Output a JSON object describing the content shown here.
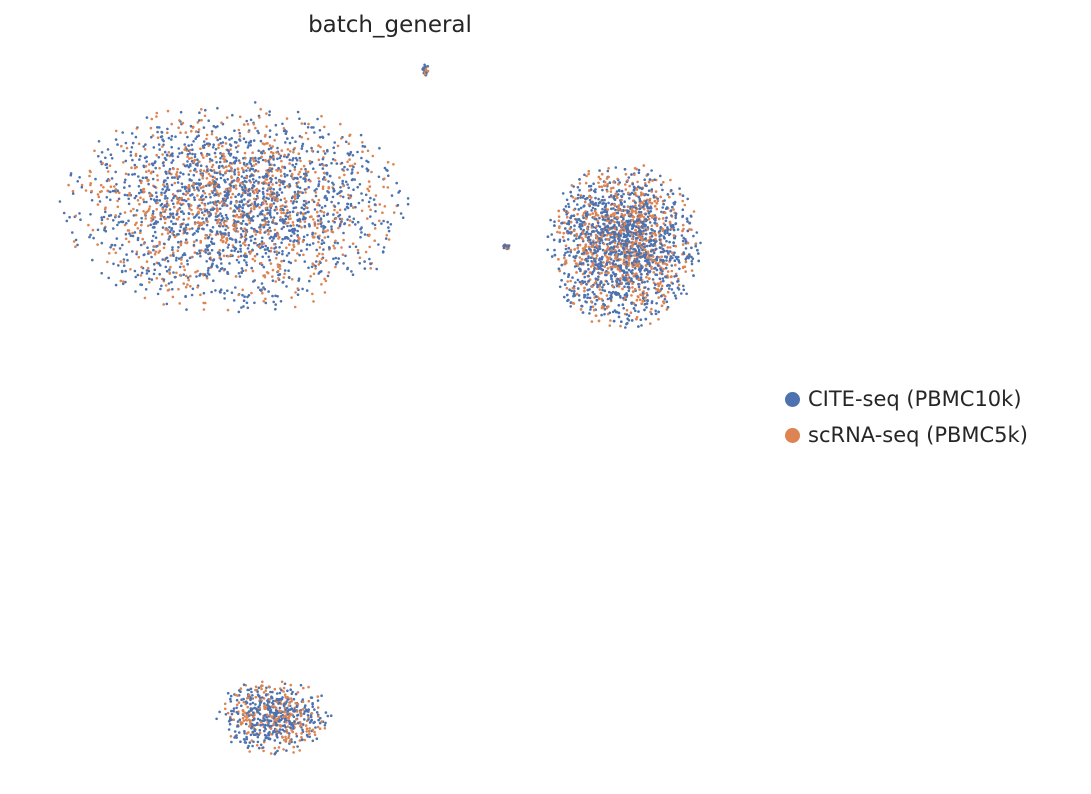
{
  "chart_data": {
    "type": "scatter",
    "title": "batch_general",
    "xlabel": "",
    "ylabel": "",
    "axes_visible": false,
    "grid": false,
    "legend_position": "right",
    "series": [
      {
        "name": "CITE-seq (PBMC10k)",
        "color": "#4c72b0"
      },
      {
        "name": "scRNA-seq (PBMC5k)",
        "color": "#dd8452"
      }
    ],
    "clusters": [
      {
        "id": "large-left-cluster",
        "x": [
          -6.5,
          2.5
        ],
        "y": [
          2.0,
          9.0
        ],
        "density": "high"
      },
      {
        "id": "right-cluster",
        "x": [
          6.0,
          10.0
        ],
        "y": [
          1.5,
          7.0
        ],
        "density": "high"
      },
      {
        "id": "bottom-cluster",
        "x": [
          -2.5,
          0.5
        ],
        "y": [
          -12.5,
          -10.0
        ],
        "density": "medium"
      },
      {
        "id": "tiny-top-cluster",
        "x": [
          2.8,
          3.0
        ],
        "y": [
          9.8,
          10.2
        ],
        "density": "low"
      },
      {
        "id": "tiny-mid-cluster",
        "x": [
          4.9,
          5.1
        ],
        "y": [
          4.1,
          4.3
        ],
        "density": "low"
      }
    ],
    "series_mixing": "both batches interleaved throughout all clusters"
  }
}
